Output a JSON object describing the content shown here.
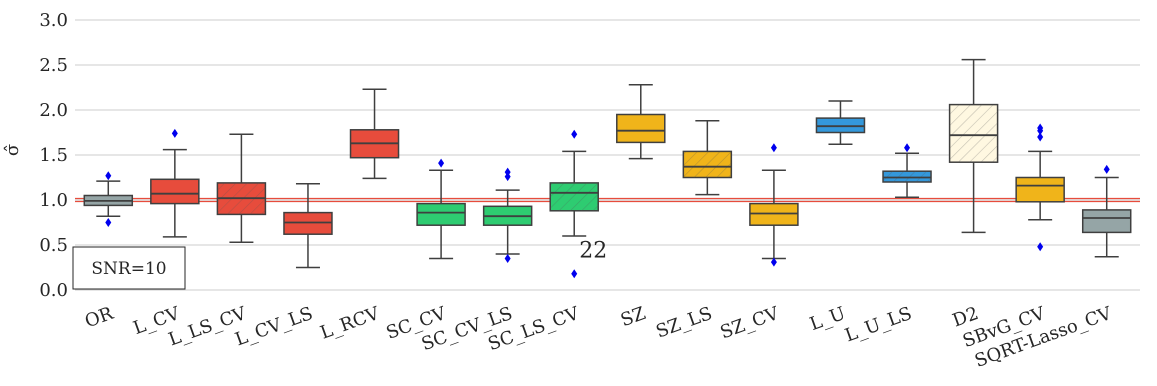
{
  "chart_data": {
    "type": "box",
    "ylabel": "σ̂",
    "ylim": [
      0,
      3
    ],
    "yticks": [
      "0.0",
      "0.5",
      "1.0",
      "1.5",
      "2.0",
      "2.5",
      "3.0"
    ],
    "grid": "horizontal",
    "reference_line": 1.0,
    "reference_color": "#e74c3c",
    "legend_text": "SNR=10",
    "legend_position": "bottom-left",
    "annotation": {
      "text": "22",
      "x_category": "SC_LS_CV",
      "y": 0.45
    },
    "colors": {
      "grey": "#95a5a6",
      "red": "#e74c3c",
      "green": "#2ecc71",
      "yellow": "#f0b41a",
      "blue": "#3498db",
      "cream": "#fff8e1"
    },
    "boxes": [
      {
        "label": "OR",
        "color": "#95a5a6",
        "hatch": false,
        "whislo": 0.82,
        "q1": 0.94,
        "med": 0.99,
        "q3": 1.05,
        "whishi": 1.21,
        "fliers": [
          1.27,
          0.75
        ]
      },
      {
        "label": "L_CV",
        "color": "#e74c3c",
        "hatch": false,
        "whislo": 0.59,
        "q1": 0.96,
        "med": 1.07,
        "q3": 1.23,
        "whishi": 1.56,
        "fliers": [
          1.74
        ]
      },
      {
        "label": "L_LS_CV",
        "color": "#e74c3c",
        "hatch": true,
        "whislo": 0.53,
        "q1": 0.84,
        "med": 1.02,
        "q3": 1.19,
        "whishi": 1.73,
        "fliers": []
      },
      {
        "label": "L_CV_LS",
        "color": "#e74c3c",
        "hatch": false,
        "whislo": 0.25,
        "q1": 0.62,
        "med": 0.75,
        "q3": 0.86,
        "whishi": 1.18,
        "fliers": []
      },
      {
        "label": "L_RCV",
        "color": "#e74c3c",
        "hatch": false,
        "whislo": 1.24,
        "q1": 1.47,
        "med": 1.63,
        "q3": 1.78,
        "whishi": 2.23,
        "fliers": []
      },
      {
        "label": "SC_CV",
        "color": "#2ecc71",
        "hatch": false,
        "whislo": 0.35,
        "q1": 0.72,
        "med": 0.86,
        "q3": 0.96,
        "whishi": 1.33,
        "fliers": [
          1.41
        ]
      },
      {
        "label": "SC_CV_LS",
        "color": "#2ecc71",
        "hatch": false,
        "whislo": 0.4,
        "q1": 0.72,
        "med": 0.82,
        "q3": 0.93,
        "whishi": 1.11,
        "fliers": [
          1.26,
          1.31,
          0.35
        ]
      },
      {
        "label": "SC_LS_CV",
        "color": "#2ecc71",
        "hatch": true,
        "whislo": 0.6,
        "q1": 0.88,
        "med": 1.08,
        "q3": 1.19,
        "whishi": 1.54,
        "fliers": [
          1.73,
          0.18
        ]
      },
      {
        "label": "SZ",
        "color": "#f0b41a",
        "hatch": false,
        "whislo": 1.46,
        "q1": 1.64,
        "med": 1.77,
        "q3": 1.95,
        "whishi": 2.28,
        "fliers": []
      },
      {
        "label": "SZ_LS",
        "color": "#f0b41a",
        "hatch": true,
        "whislo": 1.06,
        "q1": 1.25,
        "med": 1.37,
        "q3": 1.54,
        "whishi": 1.88,
        "fliers": []
      },
      {
        "label": "SZ_CV",
        "color": "#f0b41a",
        "hatch": false,
        "whislo": 0.35,
        "q1": 0.72,
        "med": 0.85,
        "q3": 0.96,
        "whishi": 1.33,
        "fliers": [
          1.58,
          0.31
        ]
      },
      {
        "label": "L_U",
        "color": "#3498db",
        "hatch": false,
        "whislo": 1.62,
        "q1": 1.75,
        "med": 1.82,
        "q3": 1.91,
        "whishi": 2.1,
        "fliers": []
      },
      {
        "label": "L_U_LS",
        "color": "#3498db",
        "hatch": true,
        "whislo": 1.03,
        "q1": 1.2,
        "med": 1.25,
        "q3": 1.32,
        "whishi": 1.52,
        "fliers": [
          1.58
        ]
      },
      {
        "label": "D2",
        "color": "#fff8e1",
        "hatch": true,
        "whislo": 0.64,
        "q1": 1.42,
        "med": 1.72,
        "q3": 2.06,
        "whishi": 2.56,
        "fliers": []
      },
      {
        "label": "SBvG_CV",
        "color": "#f0b41a",
        "hatch": false,
        "whislo": 0.78,
        "q1": 0.98,
        "med": 1.16,
        "q3": 1.25,
        "whishi": 1.54,
        "fliers": [
          1.7,
          1.77,
          1.8,
          0.48
        ]
      },
      {
        "label": "SQRT-Lasso_CV",
        "color": "#95a5a6",
        "hatch": false,
        "whislo": 0.37,
        "q1": 0.64,
        "med": 0.8,
        "q3": 0.89,
        "whishi": 1.25,
        "fliers": [
          1.34
        ]
      }
    ]
  }
}
